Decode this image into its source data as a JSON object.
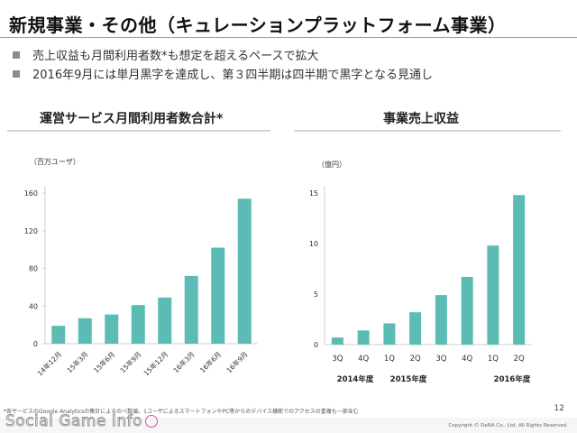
{
  "slide": {
    "title": "新規事業・その他（キュレーションプラットフォーム事業）",
    "bullets": [
      "売上収益も月間利用者数*も想定を超えるペースで拡大",
      "2016年9月には単月黒字を達成し、第３四半期は四半期で黒字となる見通し"
    ],
    "footnote": "*各サービスのGoogle Analyticsの集計によるのべ数値。1ユーザによるスマートフォンやPC等からのデバイス横断でのアクセスの重複も一部含む",
    "page_number": "12",
    "copyright": "Copyright © DeNA Co., Ltd. All Rights Reserved.",
    "watermark": "Social Game Info"
  },
  "colors": {
    "bar": "#5bbcb3",
    "axis": "#cfcfcf",
    "tick_text": "#333333"
  },
  "chart_data": [
    {
      "type": "bar",
      "title": "運営サービス月間利用者数合計*",
      "unit_label": "（百万ユーザ）",
      "categories": [
        "14年12月",
        "15年3月",
        "15年6月",
        "15年9月",
        "15年12月",
        "16年3月",
        "16年6月",
        "16年9月"
      ],
      "values": [
        19,
        27,
        31,
        41,
        49,
        72,
        102,
        154
      ],
      "y_ticks": [
        0,
        40,
        80,
        120,
        160
      ],
      "ylim": [
        0,
        160
      ],
      "grid": false
    },
    {
      "type": "bar",
      "title": "事業売上収益",
      "unit_label": "（億円）",
      "categories": [
        "3Q",
        "4Q",
        "1Q",
        "2Q",
        "3Q",
        "4Q",
        "1Q",
        "2Q"
      ],
      "values": [
        0.7,
        1.4,
        2.1,
        3.2,
        4.9,
        6.7,
        9.8,
        14.8
      ],
      "y_ticks": [
        0,
        5,
        10,
        15
      ],
      "ylim": [
        0,
        15
      ],
      "grid": false,
      "year_groups": [
        "2014年度",
        "2015年度",
        "2016年度"
      ]
    }
  ]
}
